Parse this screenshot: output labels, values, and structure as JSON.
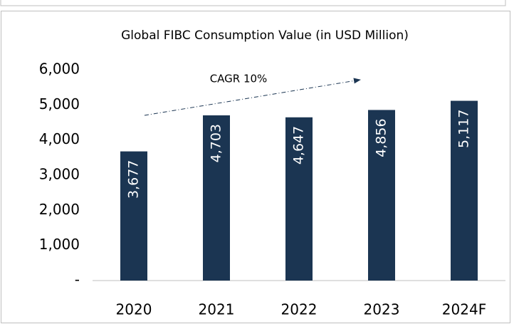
{
  "chart_data": {
    "type": "bar",
    "title": "Global FIBC Consumption Value (in USD Million)",
    "categories": [
      "2020",
      "2021",
      "2022",
      "2023",
      "2024F"
    ],
    "values": [
      3677,
      4703,
      4647,
      4856,
      5117
    ],
    "value_labels": [
      "3,677",
      "4,703",
      "4,647",
      "4,856",
      "5,117"
    ],
    "color": "#1b3552",
    "ylim": [
      0,
      6000
    ],
    "yticks": [
      {
        "value": 0,
        "label": "-"
      },
      {
        "value": 1000,
        "label": "1,000"
      },
      {
        "value": 2000,
        "label": "2,000"
      },
      {
        "value": 3000,
        "label": "3,000"
      },
      {
        "value": 4000,
        "label": "4,000"
      },
      {
        "value": 5000,
        "label": "5,000"
      },
      {
        "value": 6000,
        "label": "6,000"
      }
    ],
    "grid": false,
    "annotation": "CAGR 10%"
  }
}
